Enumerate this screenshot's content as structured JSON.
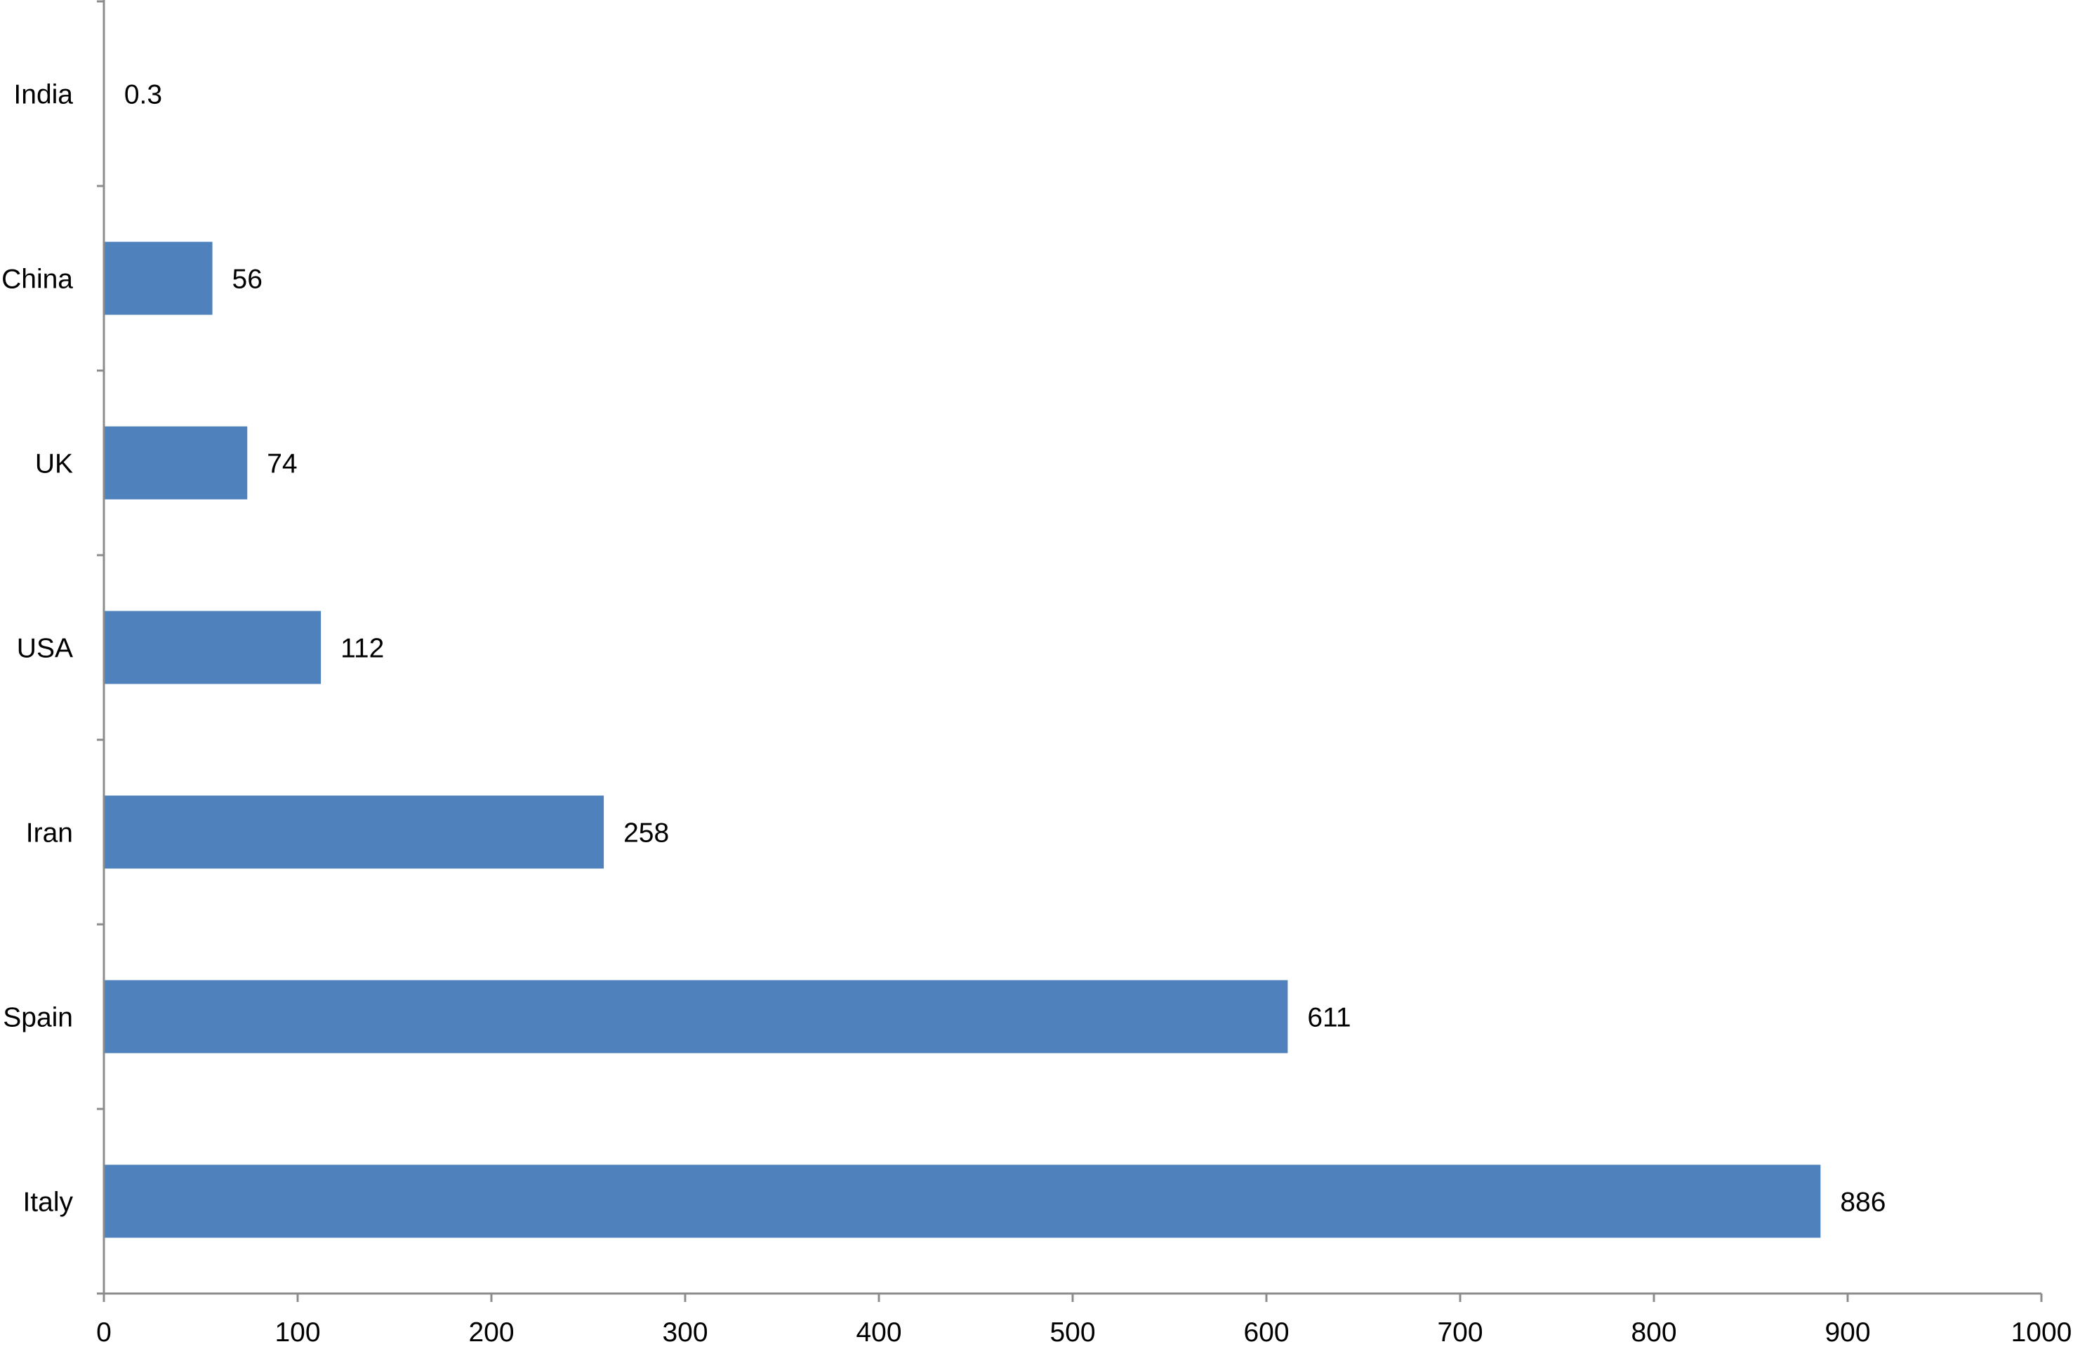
{
  "chart_data": {
    "type": "bar",
    "orientation": "horizontal",
    "title": "",
    "xlabel": "",
    "ylabel": "",
    "categories": [
      "India",
      "China",
      "UK",
      "USA",
      "Iran",
      "Spain",
      "Italy"
    ],
    "values": [
      0.3,
      56,
      74,
      112,
      258,
      611,
      886
    ],
    "data_labels": [
      "0.3",
      "56",
      "74",
      "112",
      "258",
      "611",
      "886"
    ],
    "xlim": [
      0,
      1000
    ],
    "xticks": [
      0,
      100,
      200,
      300,
      400,
      500,
      600,
      700,
      800,
      900,
      1000
    ],
    "xtick_labels": [
      "0",
      "100",
      "200",
      "300",
      "400",
      "500",
      "600",
      "700",
      "800",
      "900",
      "1000"
    ],
    "grid": false,
    "legend": "none",
    "bar_color": "#4f81bd",
    "axis_color": "#8c8c8c"
  }
}
